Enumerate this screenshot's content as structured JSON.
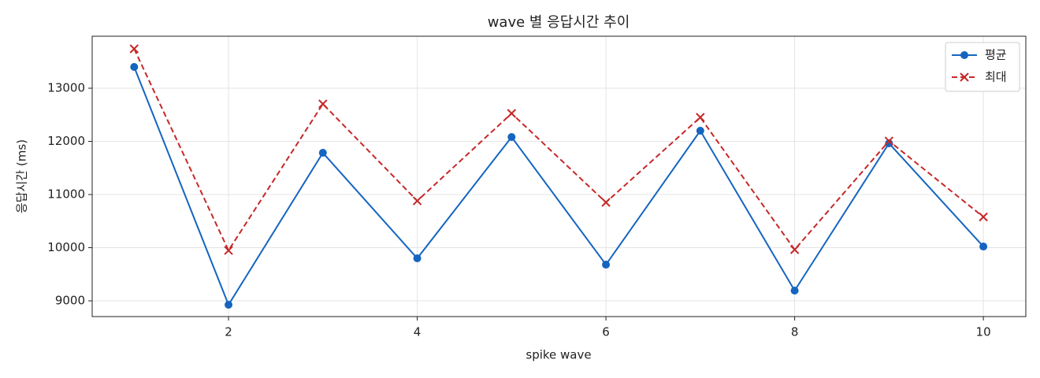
{
  "chart_data": {
    "type": "line",
    "title": "wave 별 응답시간 추이",
    "x_label": "spike wave",
    "y_label": "응답시간 (ms)",
    "x": [
      1,
      2,
      3,
      4,
      5,
      6,
      7,
      8,
      9,
      10
    ],
    "series": [
      {
        "name": "평균",
        "color": "#1565c0",
        "linestyle": "solid",
        "marker": "o",
        "values": [
          13400,
          8926,
          11785,
          9800,
          12081,
          9681,
          12200,
          9193,
          11963,
          10022
        ]
      },
      {
        "name": "최대",
        "color": "#c62828",
        "linestyle": "dashed",
        "marker": "x",
        "values": [
          13741,
          9948,
          12704,
          10881,
          12526,
          10852,
          12452,
          9963,
          12007,
          10578
        ]
      }
    ],
    "xlim": [
      0.555,
      10.45
    ],
    "ylim": [
      8704,
      13978
    ],
    "xticks": [
      2,
      4,
      6,
      8,
      10
    ],
    "yticks": [
      9000,
      10000,
      11000,
      12000,
      13000
    ],
    "grid": true,
    "legend": "upper right"
  }
}
